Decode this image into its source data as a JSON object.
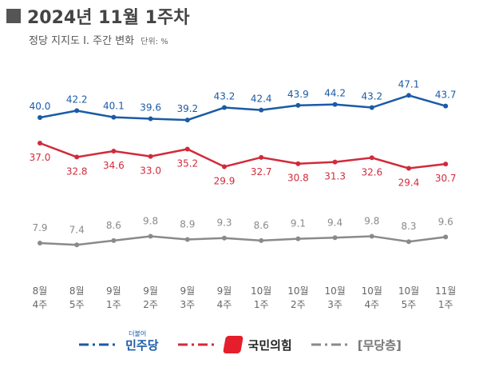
{
  "header": {
    "title": "2024년 11월 1주차",
    "subtitle": "정당 지지도 Ⅰ. 주간 변화",
    "unit": "단위: %"
  },
  "colors": {
    "dem": "#1a5ba6",
    "ppp": "#d12b3a",
    "none": "#8a8a8a"
  },
  "chart_data": {
    "type": "line",
    "categories": [
      [
        "8월",
        "4주"
      ],
      [
        "8월",
        "5주"
      ],
      [
        "9월",
        "1주"
      ],
      [
        "9월",
        "2주"
      ],
      [
        "9월",
        "3주"
      ],
      [
        "9월",
        "4주"
      ],
      [
        "10월",
        "1주"
      ],
      [
        "10월",
        "2주"
      ],
      [
        "10월",
        "3주"
      ],
      [
        "10월",
        "4주"
      ],
      [
        "10월",
        "5주"
      ],
      [
        "11월",
        "1주"
      ]
    ],
    "series": [
      {
        "name": "민주당",
        "key": "dem",
        "values": [
          40.0,
          42.2,
          40.1,
          39.6,
          39.2,
          43.2,
          42.4,
          43.9,
          44.2,
          43.2,
          47.1,
          43.7
        ]
      },
      {
        "name": "국민의힘",
        "key": "ppp",
        "values": [
          37.0,
          32.8,
          34.6,
          33.0,
          35.2,
          29.9,
          32.7,
          30.8,
          31.3,
          32.6,
          29.4,
          30.7
        ]
      },
      {
        "name": "[무당층]",
        "key": "none",
        "values": [
          7.9,
          7.4,
          8.6,
          9.8,
          8.9,
          9.3,
          8.6,
          9.1,
          9.4,
          9.8,
          8.3,
          9.6
        ]
      }
    ],
    "grid": false,
    "legend": "bottom"
  },
  "legend": {
    "dem_label": "민주당",
    "dem_small": "더불어",
    "ppp_label": "국민의힘",
    "none_label": "[무당층]"
  }
}
